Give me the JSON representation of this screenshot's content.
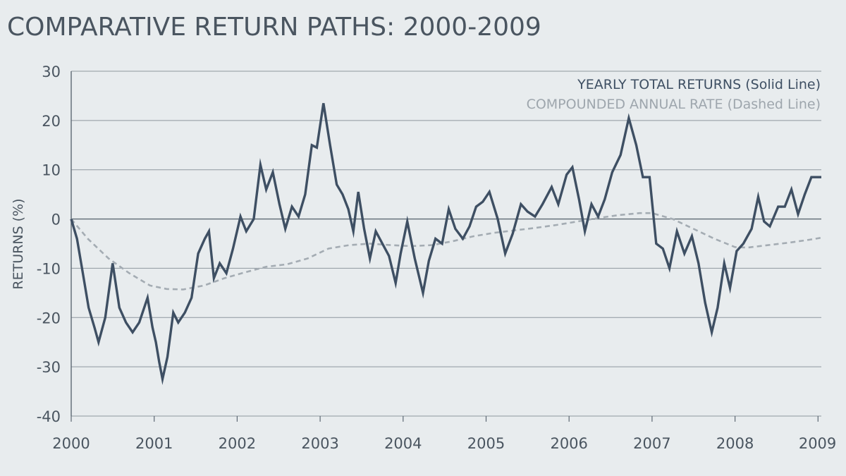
{
  "chart_data": {
    "type": "line",
    "title": "COMPARATIVE RETURN PATHS: 2000-2009",
    "xlabel": "",
    "ylabel": "RETURNS (%)",
    "xlim": [
      2000,
      2009.04
    ],
    "ylim": [
      -40,
      30
    ],
    "x_ticks": [
      2000,
      2001,
      2002,
      2003,
      2004,
      2005,
      2006,
      2007,
      2008,
      2009
    ],
    "x_tick_labels": [
      "2000",
      "2001",
      "2002",
      "2003",
      "2004",
      "2005",
      "2006",
      "2007",
      "2008",
      "2009"
    ],
    "y_ticks": [
      -40,
      -30,
      -20,
      -10,
      0,
      10,
      20,
      30
    ],
    "y_tick_labels": [
      "-40",
      "-30",
      "-20",
      "-10",
      "0",
      "10",
      "20",
      "30"
    ],
    "grid": "horizontal",
    "legend": "top-right",
    "series": [
      {
        "name": "YEARLY TOTAL RETURNS (Solid Line)",
        "style": "solid",
        "color": "#3e4f63",
        "points": [
          [
            2000.0,
            0
          ],
          [
            2000.07,
            -4
          ],
          [
            2000.14,
            -11
          ],
          [
            2000.21,
            -18
          ],
          [
            2000.28,
            -22
          ],
          [
            2000.33,
            -25
          ],
          [
            2000.41,
            -20
          ],
          [
            2000.5,
            -9
          ],
          [
            2000.58,
            -18
          ],
          [
            2000.66,
            -21
          ],
          [
            2000.74,
            -23
          ],
          [
            2000.82,
            -21
          ],
          [
            2000.9,
            -17
          ],
          [
            2000.92,
            -16
          ],
          [
            2000.98,
            -22
          ],
          [
            2001.02,
            -25
          ],
          [
            2001.06,
            -29
          ],
          [
            2001.1,
            -32.5
          ],
          [
            2001.16,
            -28
          ],
          [
            2001.23,
            -19
          ],
          [
            2001.29,
            -21
          ],
          [
            2001.37,
            -19
          ],
          [
            2001.45,
            -16
          ],
          [
            2001.53,
            -7
          ],
          [
            2001.61,
            -4
          ],
          [
            2001.66,
            -2.5
          ],
          [
            2001.72,
            -12
          ],
          [
            2001.79,
            -9
          ],
          [
            2001.87,
            -11
          ],
          [
            2001.95,
            -6
          ],
          [
            2002.04,
            0.5
          ],
          [
            2002.11,
            -2.5
          ],
          [
            2002.2,
            0
          ],
          [
            2002.28,
            11
          ],
          [
            2002.35,
            6
          ],
          [
            2002.43,
            9.5
          ],
          [
            2002.51,
            3
          ],
          [
            2002.58,
            -2
          ],
          [
            2002.66,
            2.5
          ],
          [
            2002.74,
            0.5
          ],
          [
            2002.82,
            5
          ],
          [
            2002.9,
            15
          ],
          [
            2002.96,
            14.5
          ],
          [
            2003.04,
            23.5
          ],
          [
            2003.12,
            15
          ],
          [
            2003.2,
            7
          ],
          [
            2003.27,
            5
          ],
          [
            2003.34,
            2
          ],
          [
            2003.4,
            -2.5
          ],
          [
            2003.46,
            5.5
          ],
          [
            2003.53,
            -2
          ],
          [
            2003.6,
            -8
          ],
          [
            2003.67,
            -2.5
          ],
          [
            2003.75,
            -5
          ],
          [
            2003.83,
            -7.5
          ],
          [
            2003.91,
            -13
          ],
          [
            2003.97,
            -7
          ],
          [
            2004.05,
            -0.5
          ],
          [
            2004.14,
            -8
          ],
          [
            2004.24,
            -15
          ],
          [
            2004.31,
            -8.5
          ],
          [
            2004.39,
            -4
          ],
          [
            2004.47,
            -5
          ],
          [
            2004.55,
            2
          ],
          [
            2004.63,
            -2
          ],
          [
            2004.72,
            -4
          ],
          [
            2004.8,
            -1.5
          ],
          [
            2004.88,
            2.5
          ],
          [
            2004.96,
            3.5
          ],
          [
            2005.04,
            5.5
          ],
          [
            2005.14,
            0
          ],
          [
            2005.23,
            -7
          ],
          [
            2005.32,
            -3
          ],
          [
            2005.42,
            3
          ],
          [
            2005.5,
            1.5
          ],
          [
            2005.59,
            0.5
          ],
          [
            2005.68,
            3
          ],
          [
            2005.79,
            6.5
          ],
          [
            2005.87,
            3
          ],
          [
            2005.97,
            9
          ],
          [
            2006.04,
            10.5
          ],
          [
            2006.12,
            4
          ],
          [
            2006.19,
            -2.5
          ],
          [
            2006.27,
            3
          ],
          [
            2006.35,
            0.5
          ],
          [
            2006.43,
            4
          ],
          [
            2006.52,
            9.5
          ],
          [
            2006.62,
            13
          ],
          [
            2006.72,
            20.5
          ],
          [
            2006.81,
            15
          ],
          [
            2006.89,
            8.5
          ],
          [
            2006.97,
            8.5
          ],
          [
            2007.05,
            -5
          ],
          [
            2007.13,
            -6
          ],
          [
            2007.21,
            -10
          ],
          [
            2007.3,
            -2.5
          ],
          [
            2007.39,
            -7
          ],
          [
            2007.48,
            -3.5
          ],
          [
            2007.56,
            -9
          ],
          [
            2007.64,
            -17
          ],
          [
            2007.72,
            -23
          ],
          [
            2007.79,
            -18
          ],
          [
            2007.87,
            -9
          ],
          [
            2007.94,
            -14
          ],
          [
            2008.02,
            -6.5
          ],
          [
            2008.1,
            -5
          ],
          [
            2008.2,
            -2
          ],
          [
            2008.28,
            4.5
          ],
          [
            2008.35,
            -0.5
          ],
          [
            2008.42,
            -1.5
          ],
          [
            2008.52,
            2.5
          ],
          [
            2008.6,
            2.5
          ],
          [
            2008.68,
            6
          ],
          [
            2008.76,
            1
          ],
          [
            2008.84,
            5
          ],
          [
            2008.92,
            8.5
          ],
          [
            2009.04,
            8.5
          ]
        ]
      },
      {
        "name": "COMPOUNDED ANNUAL RATE (Dashed Line)",
        "style": "dashed",
        "color": "#a4acb3",
        "points": [
          [
            2000.0,
            0
          ],
          [
            2000.2,
            -4
          ],
          [
            2000.45,
            -8
          ],
          [
            2000.7,
            -11
          ],
          [
            2000.95,
            -13.5
          ],
          [
            2001.15,
            -14.2
          ],
          [
            2001.35,
            -14.3
          ],
          [
            2001.6,
            -13.5
          ],
          [
            2001.85,
            -12
          ],
          [
            2002.1,
            -10.8
          ],
          [
            2002.35,
            -9.7
          ],
          [
            2002.6,
            -9.2
          ],
          [
            2002.85,
            -8
          ],
          [
            2003.1,
            -6
          ],
          [
            2003.35,
            -5.3
          ],
          [
            2003.6,
            -5
          ],
          [
            2003.85,
            -5.3
          ],
          [
            2004.1,
            -5.5
          ],
          [
            2004.35,
            -5.3
          ],
          [
            2004.6,
            -4.5
          ],
          [
            2004.85,
            -3.5
          ],
          [
            2005.1,
            -2.8
          ],
          [
            2005.35,
            -2.3
          ],
          [
            2005.6,
            -1.8
          ],
          [
            2005.85,
            -1.2
          ],
          [
            2006.1,
            -0.5
          ],
          [
            2006.35,
            0.2
          ],
          [
            2006.6,
            0.8
          ],
          [
            2006.85,
            1.2
          ],
          [
            2007.0,
            1.2
          ],
          [
            2007.25,
            0
          ],
          [
            2007.5,
            -2
          ],
          [
            2007.75,
            -4
          ],
          [
            2008.0,
            -5.7
          ],
          [
            2008.15,
            -5.8
          ],
          [
            2008.4,
            -5.3
          ],
          [
            2008.65,
            -4.8
          ],
          [
            2008.9,
            -4.2
          ],
          [
            2009.04,
            -3.8
          ]
        ]
      }
    ]
  }
}
